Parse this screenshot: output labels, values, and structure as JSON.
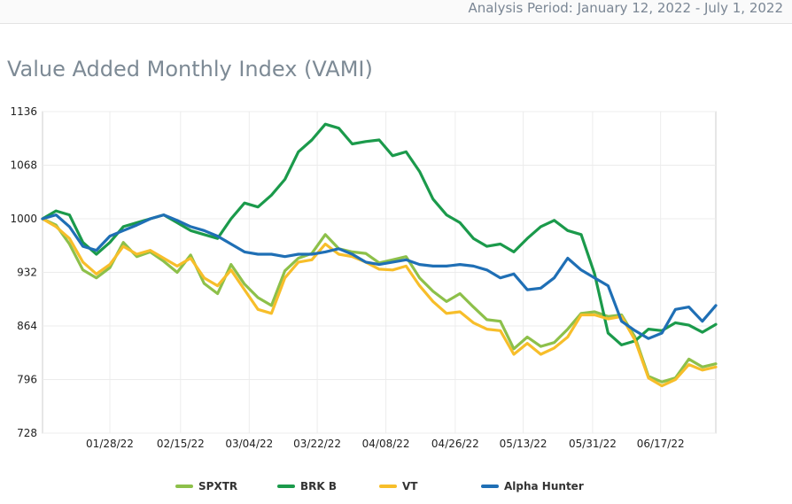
{
  "header": {
    "period": "Analysis Period: January 12, 2022 - July 1, 2022"
  },
  "title": "Value Added Monthly Index (VAMI)",
  "chart_data": {
    "type": "line",
    "title": "Value Added Monthly Index (VAMI)",
    "xlabel": "",
    "ylabel": "",
    "ylim": [
      728,
      1136
    ],
    "yticks": [
      728,
      796,
      864,
      932,
      1000,
      1068,
      1136
    ],
    "x_range": [
      0,
      100
    ],
    "xticks": [
      {
        "x": 10,
        "label": "01/28/22"
      },
      {
        "x": 20.5,
        "label": "02/15/22"
      },
      {
        "x": 30.7,
        "label": "03/04/22"
      },
      {
        "x": 40.8,
        "label": "03/22/22"
      },
      {
        "x": 51,
        "label": "04/08/22"
      },
      {
        "x": 61.3,
        "label": "04/26/22"
      },
      {
        "x": 71.4,
        "label": "05/13/22"
      },
      {
        "x": 81.7,
        "label": "05/31/22"
      },
      {
        "x": 91.8,
        "label": "06/17/22"
      }
    ],
    "grid": true,
    "legend_position": "bottom",
    "series": [
      {
        "name": "SPXTR",
        "color": "#8dc04a",
        "x": [
          0,
          2,
          4,
          6,
          8,
          10,
          12,
          14,
          16,
          18,
          20,
          22,
          24,
          26,
          28,
          30,
          32,
          34,
          36,
          38,
          40,
          42,
          44,
          46,
          48,
          50,
          52,
          54,
          56,
          58,
          60,
          62,
          64,
          66,
          68,
          70,
          72,
          74,
          76,
          78,
          80,
          82,
          84,
          86,
          88,
          90,
          92,
          94,
          96,
          98,
          100
        ],
        "y": [
          1000,
          992,
          968,
          935,
          925,
          938,
          970,
          952,
          958,
          946,
          932,
          954,
          918,
          905,
          942,
          917,
          900,
          890,
          934,
          950,
          956,
          980,
          962,
          958,
          956,
          944,
          948,
          952,
          925,
          908,
          895,
          905,
          888,
          872,
          870,
          835,
          850,
          838,
          843,
          860,
          880,
          882,
          876,
          878,
          850,
          800,
          793,
          798,
          822,
          812,
          816
        ]
      },
      {
        "name": "BRK B",
        "color": "#1b9a4b",
        "x": [
          0,
          2,
          4,
          6,
          8,
          10,
          12,
          14,
          16,
          18,
          20,
          22,
          24,
          26,
          28,
          30,
          32,
          34,
          36,
          38,
          40,
          42,
          44,
          46,
          48,
          50,
          52,
          54,
          56,
          58,
          60,
          62,
          64,
          66,
          68,
          70,
          72,
          74,
          76,
          78,
          80,
          82,
          84,
          86,
          88,
          90,
          92,
          94,
          96,
          98,
          100
        ],
        "y": [
          1000,
          1010,
          1005,
          970,
          955,
          970,
          990,
          995,
          1000,
          1005,
          995,
          985,
          980,
          975,
          1000,
          1020,
          1015,
          1030,
          1050,
          1085,
          1100,
          1120,
          1115,
          1095,
          1098,
          1100,
          1080,
          1085,
          1060,
          1025,
          1005,
          995,
          975,
          965,
          968,
          958,
          975,
          990,
          998,
          985,
          980,
          930,
          855,
          840,
          845,
          860,
          858,
          868,
          865,
          856,
          866
        ]
      },
      {
        "name": "VT",
        "color": "#f7be2a",
        "x": [
          0,
          2,
          4,
          6,
          8,
          10,
          12,
          14,
          16,
          18,
          20,
          22,
          24,
          26,
          28,
          30,
          32,
          34,
          36,
          38,
          40,
          42,
          44,
          46,
          48,
          50,
          52,
          54,
          56,
          58,
          60,
          62,
          64,
          66,
          68,
          70,
          72,
          74,
          76,
          78,
          80,
          82,
          84,
          86,
          88,
          90,
          92,
          94,
          96,
          98,
          100
        ],
        "y": [
          1000,
          990,
          975,
          945,
          930,
          942,
          965,
          955,
          960,
          950,
          940,
          950,
          925,
          915,
          935,
          910,
          885,
          880,
          925,
          945,
          948,
          968,
          955,
          952,
          945,
          936,
          935,
          940,
          915,
          895,
          880,
          882,
          868,
          860,
          858,
          828,
          842,
          828,
          836,
          850,
          878,
          878,
          873,
          876,
          846,
          798,
          788,
          796,
          815,
          808,
          812
        ]
      },
      {
        "name": "Alpha Hunter",
        "color": "#1f6fb5",
        "x": [
          0,
          2,
          4,
          6,
          8,
          10,
          12,
          14,
          16,
          18,
          20,
          22,
          24,
          26,
          28,
          30,
          32,
          34,
          36,
          38,
          40,
          42,
          44,
          46,
          48,
          50,
          52,
          54,
          56,
          58,
          60,
          62,
          64,
          66,
          68,
          70,
          72,
          74,
          76,
          78,
          80,
          82,
          84,
          86,
          88,
          90,
          92,
          94,
          96,
          98,
          100
        ],
        "y": [
          1000,
          1005,
          990,
          965,
          960,
          978,
          985,
          992,
          1000,
          1005,
          998,
          990,
          985,
          978,
          968,
          958,
          955,
          955,
          952,
          955,
          955,
          958,
          962,
          955,
          945,
          942,
          945,
          948,
          942,
          940,
          940,
          942,
          940,
          935,
          925,
          930,
          910,
          912,
          925,
          950,
          935,
          925,
          915,
          870,
          858,
          848,
          855,
          885,
          888,
          870,
          890
        ]
      }
    ]
  }
}
